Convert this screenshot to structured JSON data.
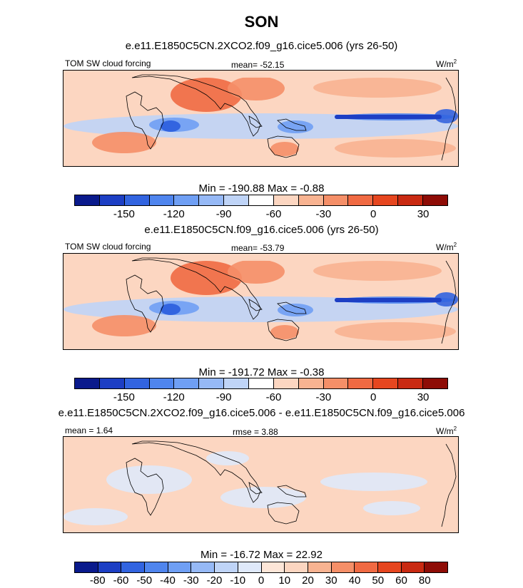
{
  "title": "SON",
  "panels": [
    {
      "title": "e.e11.E1850C5CN.2XCO2.f09_g16.cice5.006 (yrs 26-50)",
      "left_label": "TOM SW cloud forcing",
      "center_label": "mean= -52.15",
      "units": "W/m",
      "units_exp": "2",
      "minmax": "Min = -190.88 Max =  -0.88",
      "colorbar_ticks": [
        "-150",
        "-120",
        "-90",
        "-60",
        "-30",
        "0",
        "30"
      ],
      "style": "abs"
    },
    {
      "title": "e.e11.E1850C5CN.f09_g16.cice5.006 (yrs 26-50)",
      "left_label": "TOM SW cloud forcing",
      "center_label": "mean= -53.79",
      "units": "W/m",
      "units_exp": "2",
      "minmax": "Min = -191.72 Max =  -0.38",
      "colorbar_ticks": [
        "-150",
        "-120",
        "-90",
        "-60",
        "-30",
        "0",
        "30"
      ],
      "style": "abs"
    },
    {
      "title": "e.e11.E1850C5CN.2XCO2.f09_g16.cice5.006 - e.e11.E1850C5CN.f09_g16.cice5.006",
      "left_label": "mean =   1.64",
      "center_label": "rmse =   3.88",
      "units": "W/m",
      "units_exp": "2",
      "minmax": "Min = -16.72 Max =  22.92",
      "colorbar_ticks": [
        "-80",
        "-60",
        "-50",
        "-40",
        "-30",
        "-20",
        "-10",
        "0",
        "10",
        "20",
        "30",
        "40",
        "50",
        "60",
        "80"
      ],
      "style": "diff"
    }
  ],
  "colors": {
    "abs_scale": [
      "#0a1a8c",
      "#1d3fc4",
      "#3264e0",
      "#4f85ee",
      "#6f9ff4",
      "#96b9f6",
      "#bfd4f7",
      "#ffffff",
      "#fcd6c1",
      "#f8b391",
      "#f58f68",
      "#f06a43",
      "#e6461f",
      "#c92a12",
      "#8e0c06"
    ],
    "diff_scale": [
      "#0a1a8c",
      "#1d3fc4",
      "#3264e0",
      "#4f85ee",
      "#6f9ff4",
      "#96b9f6",
      "#bfd4f7",
      "#dfe9fa",
      "#fde6d8",
      "#fcd6c1",
      "#f8b391",
      "#f58f68",
      "#f06a43",
      "#e6461f",
      "#c92a12",
      "#8e0c06"
    ]
  }
}
